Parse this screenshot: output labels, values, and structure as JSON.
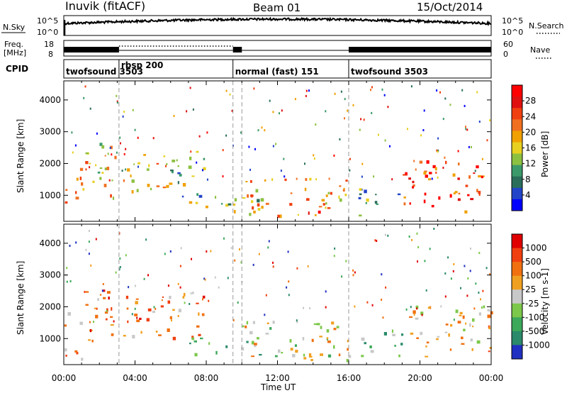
{
  "header": {
    "station": "Inuvik (fitACF)",
    "beam": "Beam 01",
    "date": "15/Oct/2014"
  },
  "strips": {
    "nsky_label": "N.Sky",
    "nsky_ticks": [
      "10^5",
      "10^0"
    ],
    "nsearch_label": "N.Search",
    "freq_label_line1": "Freq.",
    "freq_label_line2": "[MHz]",
    "freq_ticks": [
      "18",
      "8"
    ],
    "nave_ticks": [
      "60",
      "0"
    ],
    "nave_label": "Nave",
    "cpid_label": "CPID",
    "cpid_segments": [
      {
        "label": "twofsound 3503",
        "start_h": 0.0,
        "end_h": 3.1
      },
      {
        "label": "rbsp 200",
        "start_h": 3.1,
        "end_h": 9.5
      },
      {
        "label": "normal (fast) 151",
        "start_h": 9.5,
        "end_h": 16.0
      },
      {
        "label": "twofsound 3503",
        "start_h": 16.0,
        "end_h": 24.0
      }
    ],
    "mode_change_hours": [
      3.1,
      9.5,
      10.0,
      16.0
    ]
  },
  "chart_data": [
    {
      "type": "heatmap",
      "panel": "power",
      "ylabel": "Slant Range [km]",
      "ylim": [
        180,
        4600
      ],
      "yticks": [
        1000,
        2000,
        3000,
        4000
      ],
      "xlim": [
        0,
        24
      ],
      "xticks": [
        "00:00",
        "04:00",
        "08:00",
        "12:00",
        "16:00",
        "20:00",
        "00:00"
      ],
      "colorbar": {
        "label": "Power [dB]",
        "ticks": [
          "4",
          "8",
          "12",
          "16",
          "20",
          "24",
          "28"
        ],
        "colors": [
          "#0000ff",
          "#2244c8",
          "#2a6e5a",
          "#3c9a6a",
          "#8cc040",
          "#e8d020",
          "#f0a000",
          "#f07020",
          "#f04010",
          "#e01010",
          "#ff0000"
        ]
      },
      "echo_regions": [
        {
          "t0": 0.0,
          "t1": 1.0,
          "r0": 300,
          "r1": 1900,
          "level": 0.75
        },
        {
          "t0": 1.0,
          "t1": 2.9,
          "r0": 700,
          "r1": 2700,
          "level": 0.55
        },
        {
          "t0": 3.3,
          "t1": 6.2,
          "r0": 1000,
          "r1": 2300,
          "level": 0.6
        },
        {
          "t0": 5.8,
          "t1": 7.9,
          "r0": 900,
          "r1": 2400,
          "level": 0.35
        },
        {
          "t0": 7.0,
          "t1": 11.0,
          "r0": 400,
          "r1": 1000,
          "level": 0.45
        },
        {
          "t0": 10.0,
          "t1": 16.0,
          "r0": 250,
          "r1": 1500,
          "level": 0.6
        },
        {
          "t0": 12.5,
          "t1": 15.0,
          "r0": 300,
          "r1": 700,
          "level": 0.9
        },
        {
          "t0": 16.5,
          "t1": 19.0,
          "r0": 300,
          "r1": 1200,
          "level": 0.35
        },
        {
          "t0": 19.0,
          "t1": 24.0,
          "r0": 400,
          "r1": 2000,
          "level": 0.8
        }
      ]
    },
    {
      "type": "heatmap",
      "panel": "velocity",
      "ylabel": "Slant Range [km]",
      "ylim": [
        180,
        4600
      ],
      "yticks": [
        1000,
        2000,
        3000,
        4000
      ],
      "xlim": [
        0,
        24
      ],
      "xticks": [
        "00:00",
        "04:00",
        "08:00",
        "12:00",
        "16:00",
        "20:00",
        "00:00"
      ],
      "xlabel": "Time UT",
      "colorbar": {
        "label": "Velocity [m s-1]",
        "ticks": [
          "1000",
          "500",
          "100",
          "25",
          "-25",
          "-100",
          "-500",
          "-1000"
        ],
        "colors": [
          "#2030c0",
          "#2a8a6a",
          "#3ca85a",
          "#7cc84a",
          "#c8c8c8",
          "#f0a020",
          "#f07010",
          "#f04010",
          "#e00000"
        ]
      },
      "echo_regions": [
        {
          "t0": 0.0,
          "t1": 1.0,
          "r0": 300,
          "r1": 1900,
          "level": 0.7
        },
        {
          "t0": 1.0,
          "t1": 2.9,
          "r0": 700,
          "r1": 2700,
          "level": 0.75
        },
        {
          "t0": 3.3,
          "t1": 6.2,
          "r0": 1000,
          "r1": 2300,
          "level": 0.72
        },
        {
          "t0": 5.8,
          "t1": 7.9,
          "r0": 900,
          "r1": 2400,
          "level": 0.7
        },
        {
          "t0": 7.0,
          "t1": 11.0,
          "r0": 400,
          "r1": 1000,
          "level": 0.3
        },
        {
          "t0": 10.0,
          "t1": 16.0,
          "r0": 250,
          "r1": 1500,
          "level": 0.5
        },
        {
          "t0": 12.5,
          "t1": 15.0,
          "r0": 300,
          "r1": 700,
          "level": 0.45
        },
        {
          "t0": 16.5,
          "t1": 19.0,
          "r0": 300,
          "r1": 1200,
          "level": 0.3
        },
        {
          "t0": 19.0,
          "t1": 24.0,
          "r0": 400,
          "r1": 2000,
          "level": 0.6
        }
      ]
    }
  ]
}
